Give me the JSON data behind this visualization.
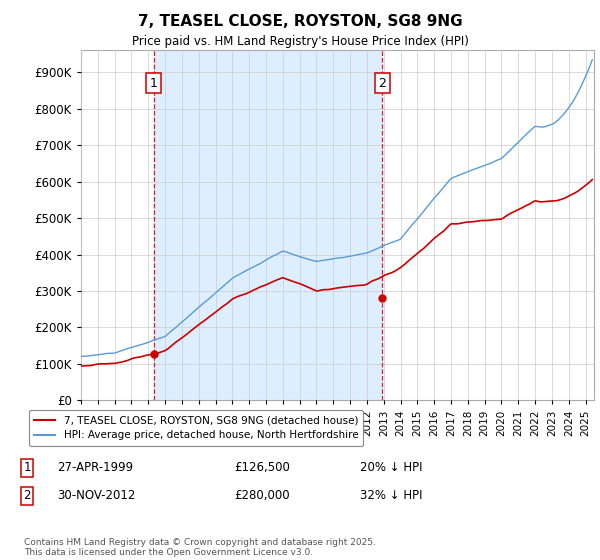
{
  "title": "7, TEASEL CLOSE, ROYSTON, SG8 9NG",
  "subtitle": "Price paid vs. HM Land Registry's House Price Index (HPI)",
  "ytick_vals": [
    0,
    100000,
    200000,
    300000,
    400000,
    500000,
    600000,
    700000,
    800000,
    900000
  ],
  "ylim": [
    0,
    960000
  ],
  "xlim_start": 1995.0,
  "xlim_end": 2025.5,
  "hpi_color": "#5b9bd5",
  "price_color": "#cc0000",
  "vline_color": "#cc0000",
  "shade_color": "#ddeeff",
  "grid_color": "#cccccc",
  "background_color": "#ffffff",
  "legend_label_price": "7, TEASEL CLOSE, ROYSTON, SG8 9NG (detached house)",
  "legend_label_hpi": "HPI: Average price, detached house, North Hertfordshire",
  "sale1_year": 1999.32,
  "sale1_price": 126500,
  "sale2_year": 2012.92,
  "sale2_price": 280000,
  "footer": "Contains HM Land Registry data © Crown copyright and database right 2025.\nThis data is licensed under the Open Government Licence v3.0.",
  "table_row1": [
    "1",
    "27-APR-1999",
    "£126,500",
    "20% ↓ HPI"
  ],
  "table_row2": [
    "2",
    "30-NOV-2012",
    "£280,000",
    "32% ↓ HPI"
  ]
}
